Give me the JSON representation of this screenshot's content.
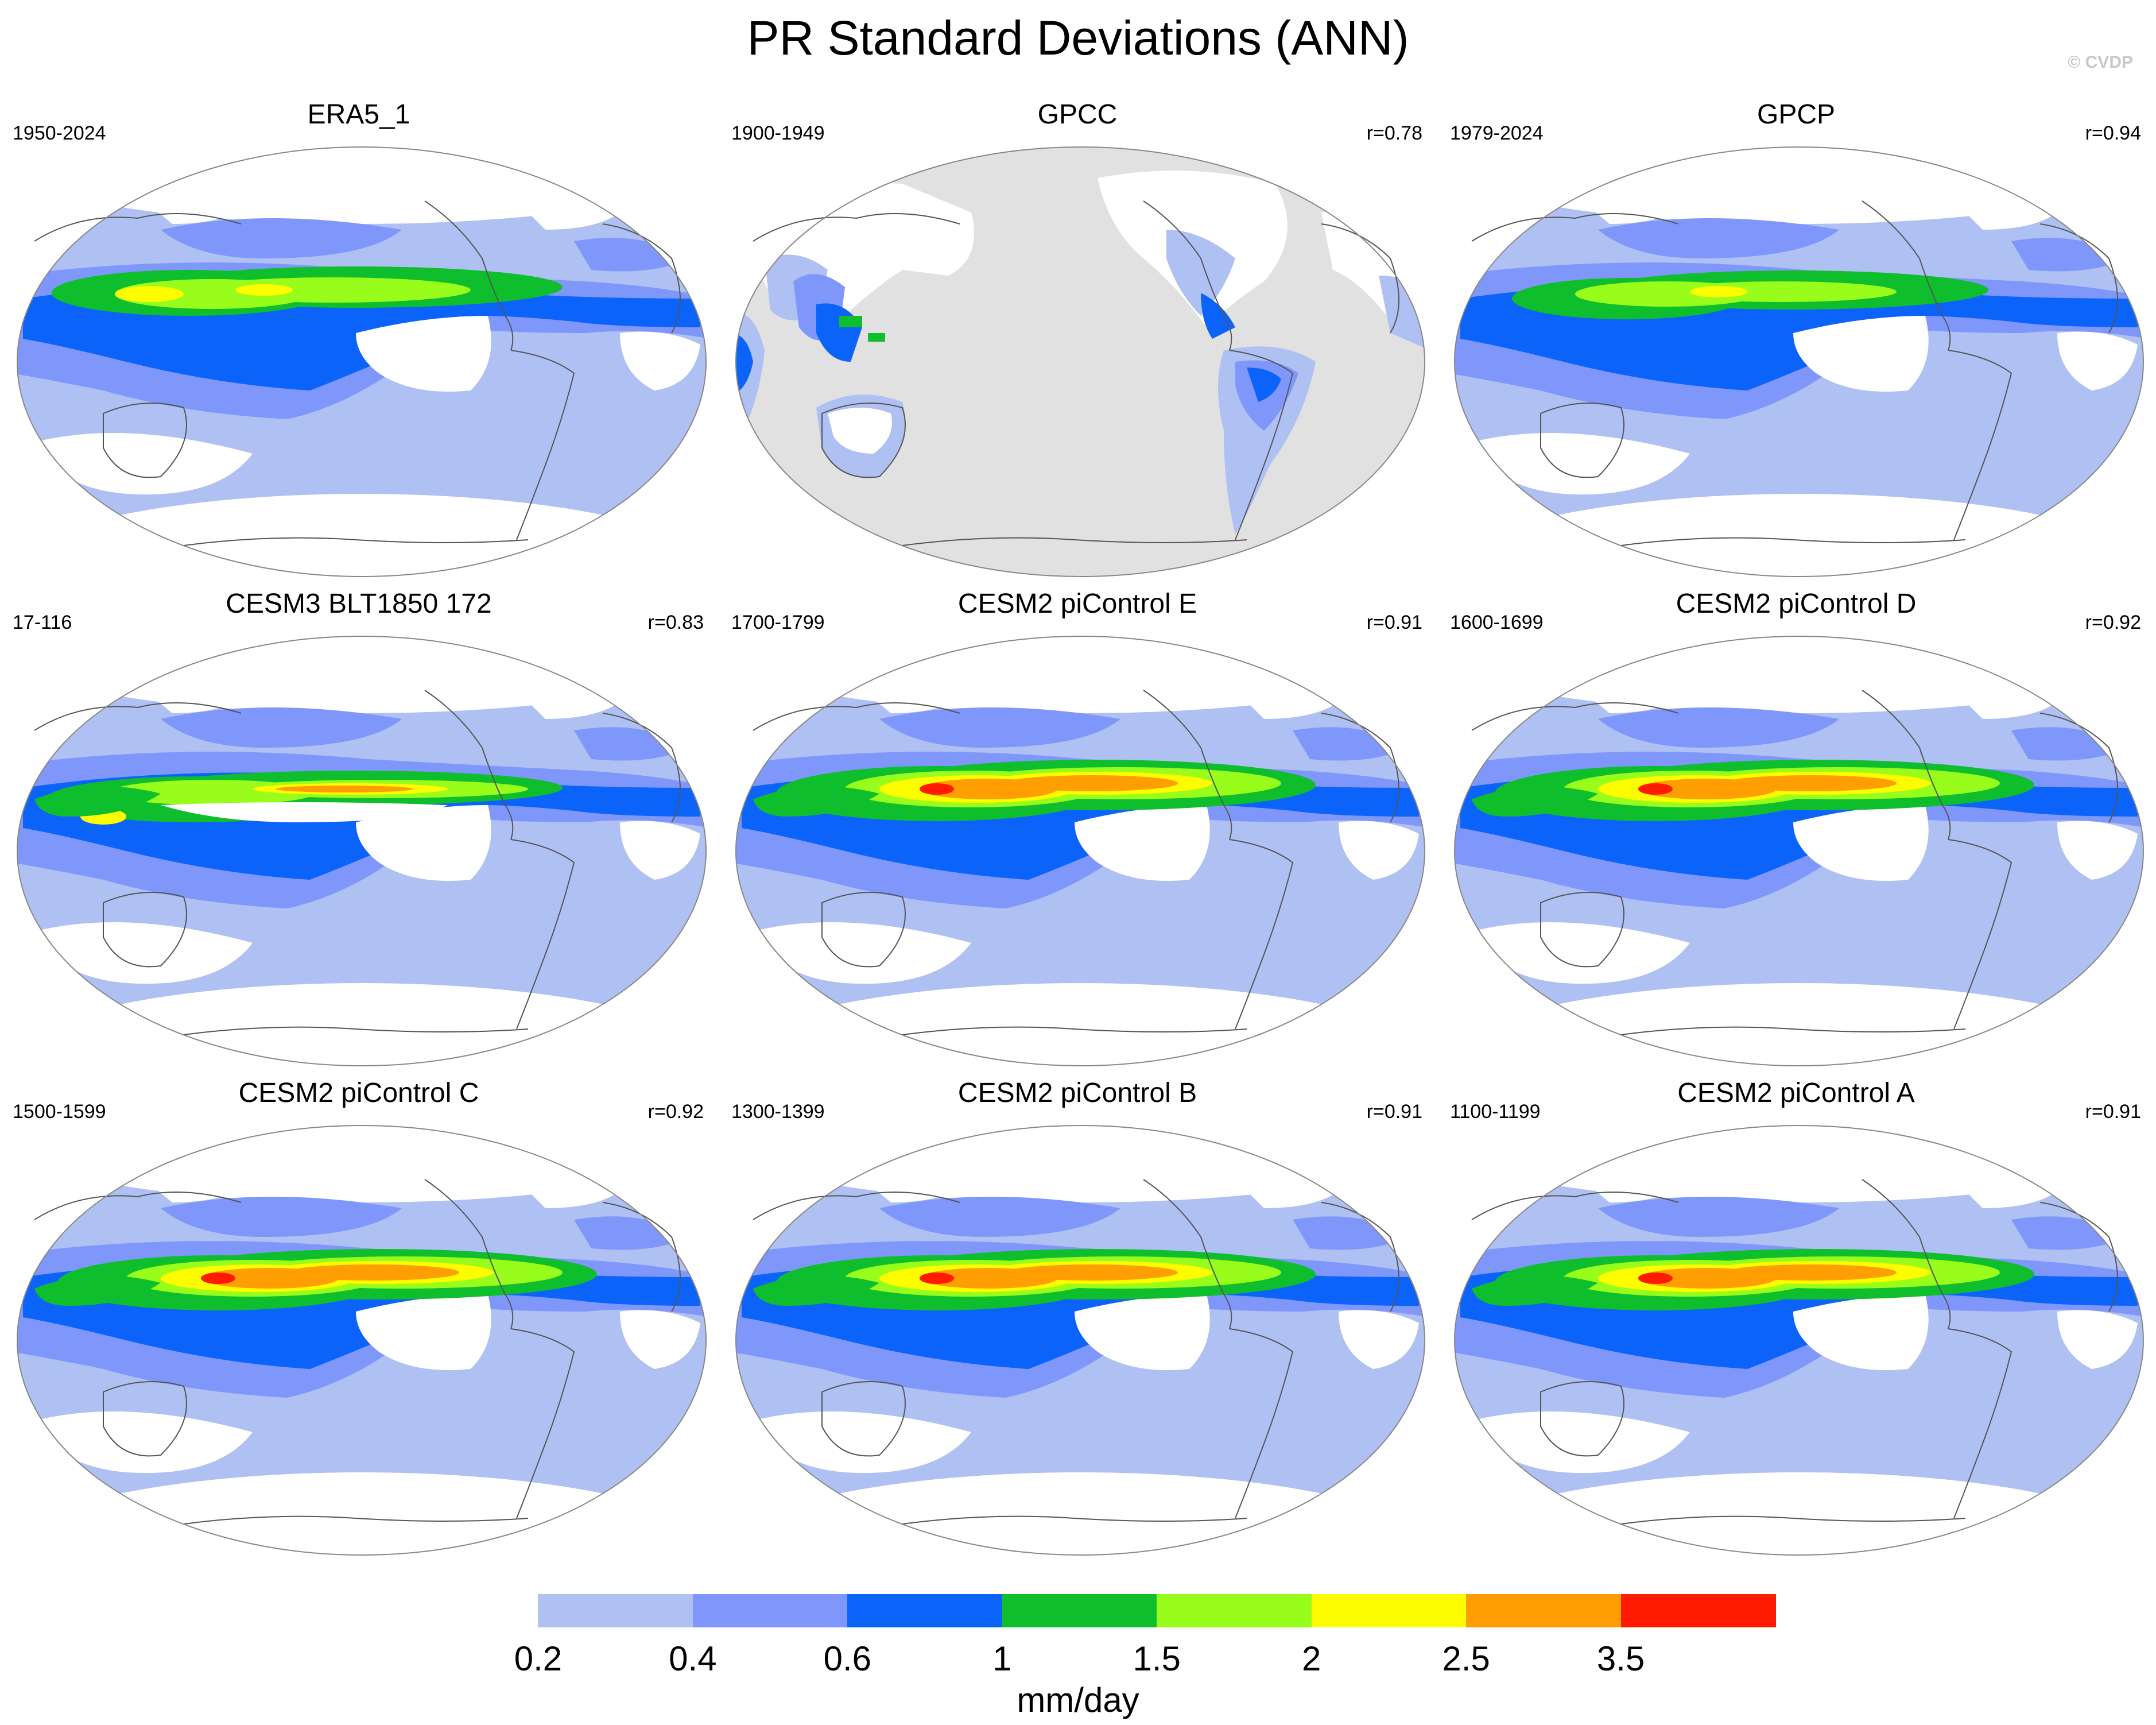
{
  "title": "PR Standard Deviations (ANN)",
  "copyright": "© CVDP",
  "units": "mm/day",
  "colorbar": {
    "colors": [
      "#ffffff",
      "#afc0f2",
      "#7f97fa",
      "#0b63fa",
      "#0fbe2d",
      "#98fd1a",
      "#fdfd00",
      "#ff9e00",
      "#ff1b00"
    ],
    "tick_labels": [
      "0.2",
      "0.4",
      "0.6",
      "1",
      "1.5",
      "2",
      "2.5",
      "3.5"
    ]
  },
  "map_colors": {
    "land_missing": "#e1e1e1",
    "coast": "#555555",
    "outline": "#888888"
  },
  "panels": [
    {
      "title": "ERA5_1",
      "period": "1950-2024",
      "r": "",
      "style": "era5"
    },
    {
      "title": "GPCC",
      "period": "1900-1949",
      "r": "r=0.78",
      "style": "gpcc"
    },
    {
      "title": "GPCP",
      "period": "1979-2024",
      "r": "r=0.94",
      "style": "gpcp"
    },
    {
      "title": "CESM3 BLT1850 172",
      "period": "17-116",
      "r": "r=0.83",
      "style": "cesm3"
    },
    {
      "title": "CESM2 piControl E",
      "period": "1700-1799",
      "r": "r=0.91",
      "style": "model"
    },
    {
      "title": "CESM2 piControl D",
      "period": "1600-1699",
      "r": "r=0.92",
      "style": "model"
    },
    {
      "title": "CESM2 piControl C",
      "period": "1500-1599",
      "r": "r=0.92",
      "style": "model"
    },
    {
      "title": "CESM2 piControl B",
      "period": "1300-1399",
      "r": "r=0.91",
      "style": "model"
    },
    {
      "title": "CESM2 piControl A",
      "period": "1100-1199",
      "r": "r=0.91",
      "style": "model"
    }
  ]
}
